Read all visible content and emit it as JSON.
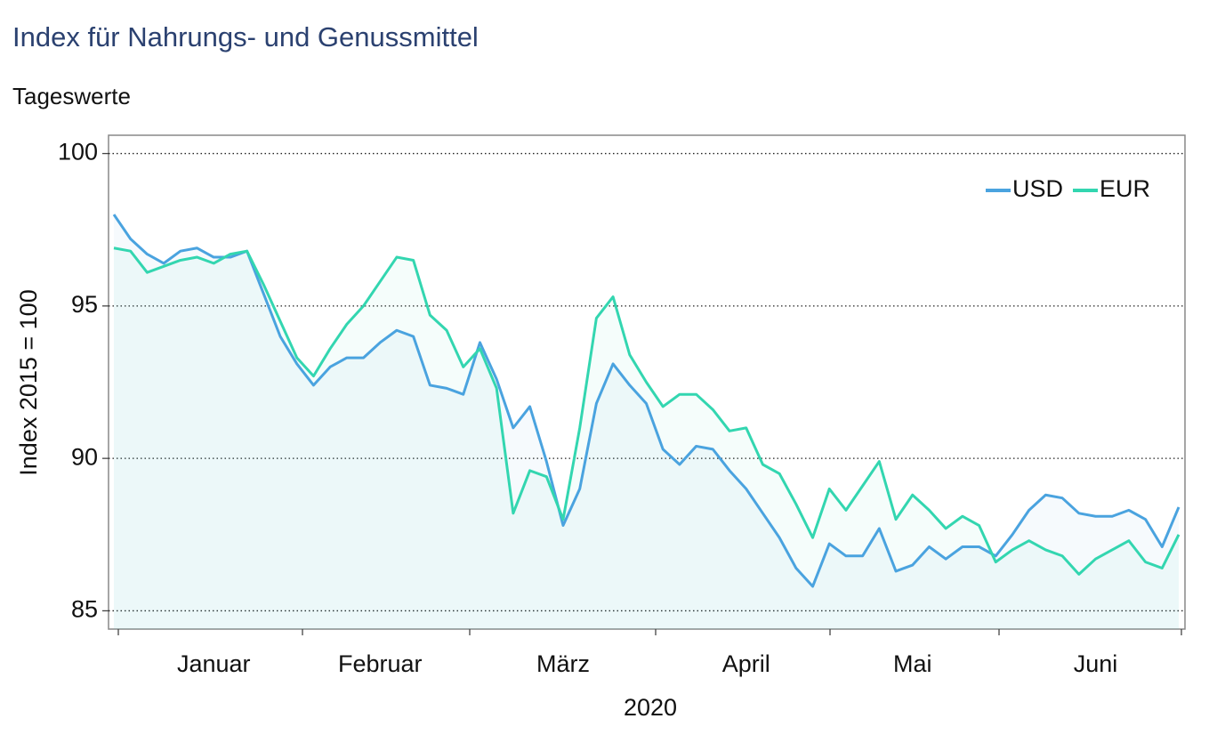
{
  "chart_data": {
    "type": "line",
    "title": "Index für Nahrungs- und Genussmittel",
    "subtitle": "Tageswerte",
    "xlabel": "2020",
    "ylabel": "Index 2015 = 100",
    "categories": [
      null,
      null,
      null,
      null,
      null,
      null,
      "Januar",
      null,
      null,
      null,
      null,
      null,
      null,
      null,
      null,
      null,
      "Februar",
      null,
      null,
      null,
      null,
      null,
      null,
      null,
      null,
      null,
      null,
      "März",
      null,
      null,
      null,
      null,
      null,
      null,
      null,
      null,
      null,
      null,
      "April",
      null,
      null,
      null,
      null,
      null,
      null,
      null,
      null,
      null,
      "Mai",
      null,
      null,
      null,
      null,
      null,
      null,
      null,
      null,
      null,
      null,
      "Juni",
      null,
      null,
      null,
      null,
      null
    ],
    "series": [
      {
        "name": "USD",
        "color": "#4aa3df",
        "values": [
          98.0,
          97.2,
          96.7,
          96.4,
          96.8,
          96.9,
          96.6,
          96.6,
          96.8,
          95.4,
          94.0,
          93.1,
          92.4,
          93.0,
          93.3,
          93.3,
          93.8,
          94.2,
          94.0,
          92.4,
          92.3,
          92.1,
          93.8,
          92.6,
          91.0,
          91.7,
          89.9,
          87.8,
          89.0,
          91.8,
          93.1,
          92.4,
          91.8,
          90.3,
          89.8,
          90.4,
          90.3,
          89.6,
          89.0,
          88.2,
          87.4,
          86.4,
          85.8,
          87.2,
          86.8,
          86.8,
          87.7,
          86.3,
          86.5,
          87.1,
          86.7,
          87.1,
          87.1,
          86.8,
          87.5,
          88.3,
          88.8,
          88.7,
          88.2,
          88.1,
          88.1,
          88.3,
          88.0,
          87.1,
          88.4
        ]
      },
      {
        "name": "EUR",
        "color": "#33d6b0",
        "values": [
          96.9,
          96.8,
          96.1,
          96.3,
          96.5,
          96.6,
          96.4,
          96.7,
          96.8,
          95.7,
          94.5,
          93.3,
          92.7,
          93.6,
          94.4,
          95.0,
          95.8,
          96.6,
          96.5,
          94.7,
          94.2,
          93.0,
          93.6,
          92.3,
          88.2,
          89.6,
          89.4,
          88.0,
          91.0,
          94.6,
          95.3,
          93.4,
          92.5,
          91.7,
          92.1,
          92.1,
          91.6,
          90.9,
          91.0,
          89.8,
          89.5,
          88.5,
          87.4,
          89.0,
          88.3,
          89.1,
          89.9,
          88.0,
          88.8,
          88.3,
          87.7,
          88.1,
          87.8,
          86.6,
          87.0,
          87.3,
          87.0,
          86.8,
          86.2,
          86.7,
          87.0,
          87.3,
          86.6,
          86.4,
          87.5
        ]
      }
    ],
    "ylim": [
      84.4,
      100.6
    ],
    "yticks": [
      85,
      90,
      95,
      100
    ],
    "grid": true,
    "legend": "upper right"
  }
}
